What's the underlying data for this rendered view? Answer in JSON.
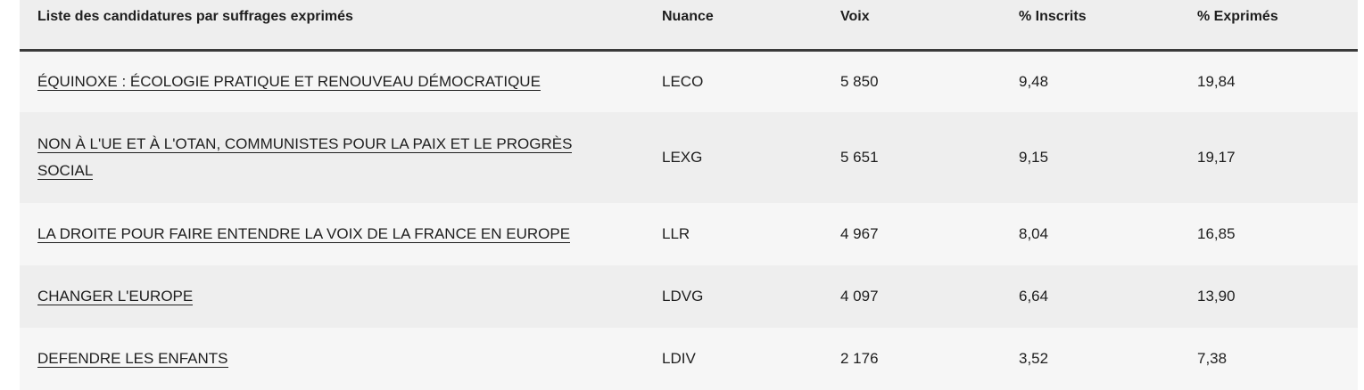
{
  "table": {
    "headers": [
      "Liste des candidatures par suffrages exprimés",
      "Nuance",
      "Voix",
      "% Inscrits",
      "% Exprimés"
    ],
    "rows": [
      {
        "liste": "ÉQUINOXE : ÉCOLOGIE PRATIQUE ET RENOUVEAU DÉMOCRATIQUE",
        "nuance": "LECO",
        "voix": "5 850",
        "inscrits": "9,48",
        "exprimes": "19,84"
      },
      {
        "liste": "NON À L'UE ET À L'OTAN, COMMUNISTES POUR LA PAIX ET LE PROGRÈS SOCIAL",
        "nuance": "LEXG",
        "voix": "5 651",
        "inscrits": "9,15",
        "exprimes": "19,17"
      },
      {
        "liste": "LA DROITE POUR FAIRE ENTENDRE LA VOIX DE LA FRANCE EN EUROPE",
        "nuance": "LLR",
        "voix": "4 967",
        "inscrits": "8,04",
        "exprimes": "16,85"
      },
      {
        "liste": "CHANGER L'EUROPE",
        "nuance": "LDVG",
        "voix": "4 097",
        "inscrits": "6,64",
        "exprimes": "13,90"
      },
      {
        "liste": "DEFENDRE LES ENFANTS",
        "nuance": "LDIV",
        "voix": "2 176",
        "inscrits": "3,52",
        "exprimes": "7,38"
      }
    ]
  }
}
